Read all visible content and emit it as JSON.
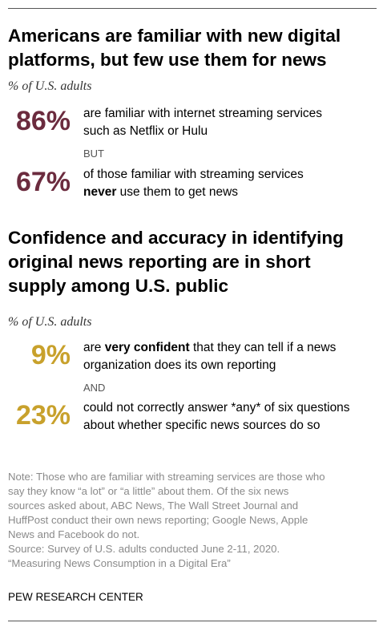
{
  "section1": {
    "title_line1": "Americans are familiar with new digital",
    "title_line2": "platforms, but few use them for news",
    "subtitle": "% of U.S. adults",
    "stat1": {
      "value": "86%",
      "line1": "are familiar with internet streaming services",
      "line2": "such as Netflix or Hulu"
    },
    "connector": "BUT",
    "stat2": {
      "value": "67%",
      "line1": "of those familiar with streaming services",
      "line2_bold": "never",
      "line2_rest": " use them to get news"
    }
  },
  "section2": {
    "title_line1": "Confidence and accuracy in identifying",
    "title_line2": "original news reporting are in short",
    "title_line3": "supply among U.S. public",
    "subtitle": "% of U.S. adults",
    "stat1": {
      "value": "9%",
      "line1_pre": "are ",
      "line1_bold": "very confident",
      "line1_post": " that they can tell if a news",
      "line2": "organization does its own reporting"
    },
    "connector": "AND",
    "stat2": {
      "value": "23%",
      "line1": "could not correctly answer *any* of six questions",
      "line2": "about whether specific news sources do so"
    }
  },
  "colors": {
    "maroon": "#6b2b3e",
    "gold": "#c8a12c",
    "note_gray": "#8a8a8a"
  },
  "notes": {
    "line1": "Note: Those who are familiar with streaming services are those who",
    "line2": "say they know “a lot” or “a little” about them. Of the six news",
    "line3": "sources asked about, ABC News, The Wall Street Journal and",
    "line4": "HuffPost conduct their own news reporting; Google News, Apple",
    "line5": "News and Facebook do not.",
    "line6": "Source: Survey of U.S. adults conducted June 2-11, 2020.",
    "line7": "“Measuring News Consumption in a Digital Era”"
  },
  "brand": "PEW RESEARCH CENTER"
}
